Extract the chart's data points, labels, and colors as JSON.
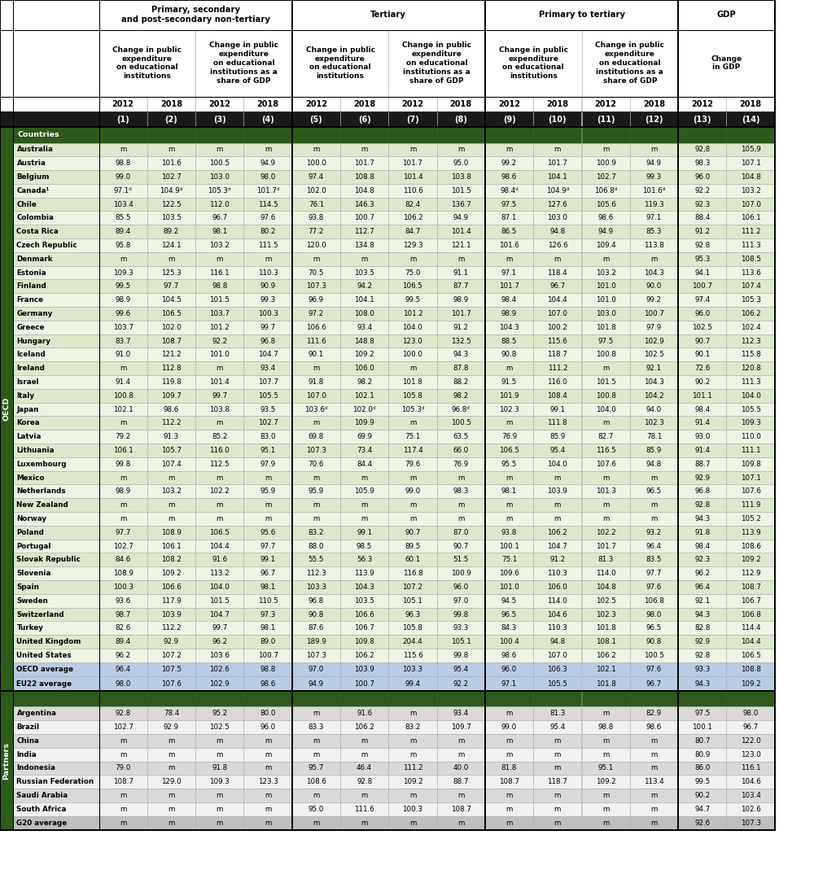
{
  "year_row": [
    "2012",
    "2018",
    "2012",
    "2018",
    "2012",
    "2018",
    "2012",
    "2018",
    "2012",
    "2018",
    "2012",
    "2018",
    "2012",
    "2018"
  ],
  "num_row": [
    "(1)",
    "(2)",
    "(3)",
    "(4)",
    "(5)",
    "(6)",
    "(7)",
    "(8)",
    "(9)",
    "(10)",
    "(11)",
    "(12)",
    "(13)",
    "(14)"
  ],
  "oecd_rows": [
    [
      "Australia",
      "m",
      "m",
      "m",
      "m",
      "m",
      "m",
      "m",
      "m",
      "m",
      "m",
      "m",
      "m",
      "92,8",
      "105,9"
    ],
    [
      "Austria",
      "98.8",
      "101.6",
      "100.5",
      "94.9",
      "100.0",
      "101.7",
      "101.7",
      "95.0",
      "99.2",
      "101.7",
      "100.9",
      "94.9",
      "98.3",
      "107.1"
    ],
    [
      "Belgium",
      "99.0",
      "102.7",
      "103.0",
      "98.0",
      "97.4",
      "108.8",
      "101.4",
      "103.8",
      "98.6",
      "104.1",
      "102.7",
      "99.3",
      "96.0",
      "104.8"
    ],
    [
      "Canada¹",
      "97.1ᵈ",
      "104.9ᵈ",
      "105.3ᵈ",
      "101.7ᵈ",
      "102.0",
      "104.8",
      "110.6",
      "101.5",
      "98.4ᵈ",
      "104.9ᵈ",
      "106.8ᵈ",
      "101.6ᵈ",
      "92.2",
      "103.2"
    ],
    [
      "Chile",
      "103.4",
      "122.5",
      "112.0",
      "114.5",
      "76.1",
      "146.3",
      "82.4",
      "136.7",
      "97.5",
      "127.6",
      "105.6",
      "119.3",
      "92.3",
      "107.0"
    ],
    [
      "Colombia",
      "85.5",
      "103.5",
      "96.7",
      "97.6",
      "93.8",
      "100.7",
      "106.2",
      "94.9",
      "87.1",
      "103.0",
      "98.6",
      "97.1",
      "88.4",
      "106.1"
    ],
    [
      "Costa Rica",
      "89.4",
      "89.2",
      "98.1",
      "80.2",
      "77.2",
      "112.7",
      "84.7",
      "101.4",
      "86.5",
      "94.8",
      "94.9",
      "85.3",
      "91.2",
      "111.2"
    ],
    [
      "Czech Republic",
      "95.8",
      "124.1",
      "103.2",
      "111.5",
      "120.0",
      "134.8",
      "129.3",
      "121.1",
      "101.6",
      "126.6",
      "109.4",
      "113.8",
      "92.8",
      "111.3"
    ],
    [
      "Denmark",
      "m",
      "m",
      "m",
      "m",
      "m",
      "m",
      "m",
      "m",
      "m",
      "m",
      "m",
      "m",
      "95.3",
      "108.5"
    ],
    [
      "Estonia",
      "109.3",
      "125.3",
      "116.1",
      "110.3",
      "70.5",
      "103.5",
      "75.0",
      "91.1",
      "97.1",
      "118.4",
      "103.2",
      "104.3",
      "94.1",
      "113.6"
    ],
    [
      "Finland",
      "99.5",
      "97.7",
      "98.8",
      "90.9",
      "107.3",
      "94.2",
      "106.5",
      "87.7",
      "101.7",
      "96.7",
      "101.0",
      "90.0",
      "100.7",
      "107.4"
    ],
    [
      "France",
      "98.9",
      "104.5",
      "101.5",
      "99.3",
      "96.9",
      "104.1",
      "99.5",
      "98.9",
      "98.4",
      "104.4",
      "101.0",
      "99.2",
      "97.4",
      "105.3"
    ],
    [
      "Germany",
      "99.6",
      "106.5",
      "103.7",
      "100.3",
      "97.2",
      "108.0",
      "101.2",
      "101.7",
      "98.9",
      "107.0",
      "103.0",
      "100.7",
      "96.0",
      "106.2"
    ],
    [
      "Greece",
      "103.7",
      "102.0",
      "101.2",
      "99.7",
      "106.6",
      "93.4",
      "104.0",
      "91.2",
      "104.3",
      "100.2",
      "101.8",
      "97.9",
      "102.5",
      "102.4"
    ],
    [
      "Hungary",
      "83.7",
      "108.7",
      "92.2",
      "96.8",
      "111.6",
      "148.8",
      "123.0",
      "132.5",
      "88.5",
      "115.6",
      "97.5",
      "102.9",
      "90.7",
      "112.3"
    ],
    [
      "Iceland",
      "91.0",
      "121.2",
      "101.0",
      "104.7",
      "90.1",
      "109.2",
      "100.0",
      "94.3",
      "90.8",
      "118.7",
      "100.8",
      "102.5",
      "90.1",
      "115.8"
    ],
    [
      "Ireland",
      "m",
      "112.8",
      "m",
      "93.4",
      "m",
      "106.0",
      "m",
      "87.8",
      "m",
      "111.2",
      "m",
      "92.1",
      "72.6",
      "120.8"
    ],
    [
      "Israel",
      "91.4",
      "119.8",
      "101.4",
      "107.7",
      "91.8",
      "98.2",
      "101.8",
      "88.2",
      "91.5",
      "116.0",
      "101.5",
      "104.3",
      "90.2",
      "111.3"
    ],
    [
      "Italy",
      "100.8",
      "109.7",
      "99.7",
      "105.5",
      "107.0",
      "102.1",
      "105.8",
      "98.2",
      "101.9",
      "108.4",
      "100.8",
      "104.2",
      "101.1",
      "104.0"
    ],
    [
      "Japan",
      "102.1",
      "98.6",
      "103.8",
      "93.5",
      "103.6ᵈ",
      "102.0ᵈ",
      "105.3ᵈ",
      "96.8ᵈ",
      "102.3",
      "99.1",
      "104.0",
      "94.0",
      "98.4",
      "105.5"
    ],
    [
      "Korea",
      "m",
      "112.2",
      "m",
      "102.7",
      "m",
      "109.9",
      "m",
      "100.5",
      "m",
      "111.8",
      "m",
      "102.3",
      "91.4",
      "109.3"
    ],
    [
      "Latvia",
      "79.2",
      "91.3",
      "85.2",
      "83.0",
      "69.8",
      "69.9",
      "75.1",
      "63.5",
      "76.9",
      "85.9",
      "82.7",
      "78.1",
      "93.0",
      "110.0"
    ],
    [
      "Lithuania",
      "106.1",
      "105.7",
      "116.0",
      "95.1",
      "107.3",
      "73.4",
      "117.4",
      "66.0",
      "106.5",
      "95.4",
      "116.5",
      "85.9",
      "91.4",
      "111.1"
    ],
    [
      "Luxembourg",
      "99.8",
      "107.4",
      "112.5",
      "97.9",
      "70.6",
      "84.4",
      "79.6",
      "76.9",
      "95.5",
      "104.0",
      "107.6",
      "94.8",
      "88.7",
      "109.8"
    ],
    [
      "Mexico",
      "m",
      "m",
      "m",
      "m",
      "m",
      "m",
      "m",
      "m",
      "m",
      "m",
      "m",
      "m",
      "92.9",
      "107.1"
    ],
    [
      "Netherlands",
      "98.9",
      "103.2",
      "102.2",
      "95.9",
      "95.9",
      "105.9",
      "99.0",
      "98.3",
      "98.1",
      "103.9",
      "101.3",
      "96.5",
      "96.8",
      "107.6"
    ],
    [
      "New Zealand",
      "m",
      "m",
      "m",
      "m",
      "m",
      "m",
      "m",
      "m",
      "m",
      "m",
      "m",
      "m",
      "92.8",
      "111.9"
    ],
    [
      "Norway",
      "m",
      "m",
      "m",
      "m",
      "m",
      "m",
      "m",
      "m",
      "m",
      "m",
      "m",
      "m",
      "94.3",
      "105.2"
    ],
    [
      "Poland",
      "97.7",
      "108.9",
      "106.5",
      "95.6",
      "83.2",
      "99.1",
      "90.7",
      "87.0",
      "93.8",
      "106.2",
      "102.2",
      "93.2",
      "91.8",
      "113.9"
    ],
    [
      "Portugal",
      "102.7",
      "106.1",
      "104.4",
      "97.7",
      "88.0",
      "98.5",
      "89.5",
      "90.7",
      "100.1",
      "104.7",
      "101.7",
      "96.4",
      "98.4",
      "108.6"
    ],
    [
      "Slovak Republic",
      "84.6",
      "108.2",
      "91.6",
      "99.1",
      "55.5",
      "56.3",
      "60.1",
      "51.5",
      "75.1",
      "91.2",
      "81.3",
      "83.5",
      "92.3",
      "109.2"
    ],
    [
      "Slovenia",
      "108.9",
      "109.2",
      "113.2",
      "96.7",
      "112.3",
      "113.9",
      "116.8",
      "100.9",
      "109.6",
      "110.3",
      "114.0",
      "97.7",
      "96.2",
      "112.9"
    ],
    [
      "Spain",
      "100.3",
      "106.6",
      "104.0",
      "98.1",
      "103.3",
      "104.3",
      "107.2",
      "96.0",
      "101.0",
      "106.0",
      "104.8",
      "97.6",
      "96.4",
      "108.7"
    ],
    [
      "Sweden",
      "93.6",
      "117.9",
      "101.5",
      "110.5",
      "96.8",
      "103.5",
      "105.1",
      "97.0",
      "94.5",
      "114.0",
      "102.5",
      "106.8",
      "92.1",
      "106.7"
    ],
    [
      "Switzerland",
      "98.7",
      "103.9",
      "104.7",
      "97.3",
      "90.8",
      "106.6",
      "96.3",
      "99.8",
      "96.5",
      "104.6",
      "102.3",
      "98.0",
      "94.3",
      "106.8"
    ],
    [
      "Turkey",
      "82.6",
      "112.2",
      "99.7",
      "98.1",
      "87.6",
      "106.7",
      "105.8",
      "93.3",
      "84.3",
      "110.3",
      "101.8",
      "96.5",
      "82.8",
      "114.4"
    ],
    [
      "United Kingdom",
      "89.4",
      "92.9",
      "96.2",
      "89.0",
      "189.9",
      "109.8",
      "204.4",
      "105.1",
      "100.4",
      "94.8",
      "108.1",
      "90.8",
      "92.9",
      "104.4"
    ],
    [
      "United States",
      "96.2",
      "107.2",
      "103.6",
      "100.7",
      "107.3",
      "106.2",
      "115.6",
      "99.8",
      "98.6",
      "107.0",
      "106.2",
      "100.5",
      "92.8",
      "106.5"
    ]
  ],
  "avg_rows": [
    [
      "OECD average",
      "96.4",
      "107.5",
      "102.6",
      "98.8",
      "97.0",
      "103.9",
      "103.3",
      "95.4",
      "96.0",
      "106.3",
      "102.1",
      "97.6",
      "93.3",
      "108.8"
    ],
    [
      "EU22 average",
      "98.0",
      "107.6",
      "102.9",
      "98.6",
      "94.9",
      "100.7",
      "99.4",
      "92.2",
      "97.1",
      "105.5",
      "101.8",
      "96.7",
      "94.3",
      "109.2"
    ]
  ],
  "partners_rows": [
    [
      "Argentina",
      "92.8",
      "78.4",
      "95.2",
      "80.0",
      "m",
      "91.6",
      "m",
      "93.4",
      "m",
      "81.3",
      "m",
      "82.9",
      "97.5",
      "98.0"
    ],
    [
      "Brazil",
      "102.7",
      "92.9",
      "102.5",
      "96.0",
      "83.3",
      "106.2",
      "83.2",
      "109.7",
      "99.0",
      "95.4",
      "98.8",
      "98.6",
      "100.1",
      "96.7"
    ],
    [
      "China",
      "m",
      "m",
      "m",
      "m",
      "m",
      "m",
      "m",
      "m",
      "m",
      "m",
      "m",
      "m",
      "80.7",
      "122.0"
    ],
    [
      "India",
      "m",
      "m",
      "m",
      "m",
      "m",
      "m",
      "m",
      "m",
      "m",
      "m",
      "m",
      "m",
      "80.9",
      "123.0"
    ],
    [
      "Indonesia",
      "79.0",
      "m",
      "91.8",
      "m",
      "95.7",
      "46.4",
      "111.2",
      "40.0",
      "81.8",
      "m",
      "95.1",
      "m",
      "86.0",
      "116.1"
    ],
    [
      "Russian Federation",
      "108.7",
      "129.0",
      "109.3",
      "123.3",
      "108.6",
      "92.8",
      "109.2",
      "88.7",
      "108.7",
      "118.7",
      "109.2",
      "113.4",
      "99.5",
      "104.6"
    ],
    [
      "Saudi Arabia",
      "m",
      "m",
      "m",
      "m",
      "m",
      "m",
      "m",
      "m",
      "m",
      "m",
      "m",
      "m",
      "90.2",
      "103.4"
    ],
    [
      "South Africa",
      "m",
      "m",
      "m",
      "m",
      "95.0",
      "111.6",
      "100.3",
      "108.7",
      "m",
      "m",
      "m",
      "m",
      "94.7",
      "102.6"
    ]
  ],
  "g20_row": [
    "G20 average",
    "m",
    "m",
    "m",
    "m",
    "m",
    "m",
    "m",
    "m",
    "m",
    "m",
    "m",
    "m",
    "92.6",
    "107.3"
  ]
}
